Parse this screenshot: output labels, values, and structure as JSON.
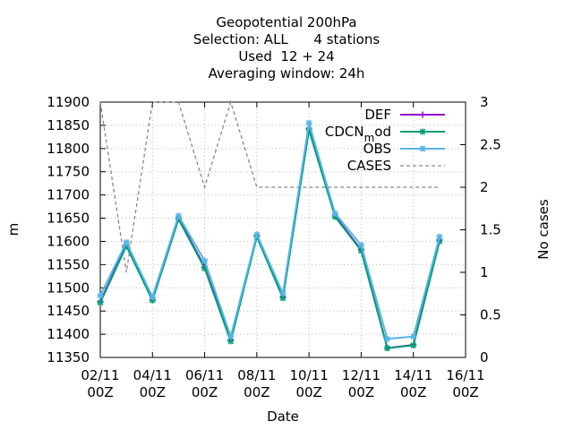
{
  "chart_data": {
    "type": "line",
    "title_lines": [
      "Geopotential 200hPa",
      "Selection: ALL      4 stations",
      "Used  12 + 24",
      "Averaging window: 24h"
    ],
    "xlabel": "Date",
    "ylabel": "m",
    "y2label": "No cases",
    "x_ticks": [
      {
        "day": 2,
        "line1": "02/11",
        "line2": "00Z"
      },
      {
        "day": 4,
        "line1": "04/11",
        "line2": "00Z"
      },
      {
        "day": 6,
        "line1": "06/11",
        "line2": "00Z"
      },
      {
        "day": 8,
        "line1": "08/11",
        "line2": "00Z"
      },
      {
        "day": 10,
        "line1": "10/11",
        "line2": "00Z"
      },
      {
        "day": 12,
        "line1": "12/11",
        "line2": "00Z"
      },
      {
        "day": 14,
        "line1": "14/11",
        "line2": "00Z"
      },
      {
        "day": 16,
        "line1": "16/11",
        "line2": "00Z"
      }
    ],
    "xlim": [
      2,
      16
    ],
    "ylim": [
      11350,
      11900
    ],
    "y_ticks": [
      11350,
      11400,
      11450,
      11500,
      11550,
      11600,
      11650,
      11700,
      11750,
      11800,
      11850,
      11900
    ],
    "y2lim": [
      0,
      3
    ],
    "y2_ticks": [
      "0",
      "0.5",
      "1",
      "1.5",
      "2",
      "2.5",
      "3"
    ],
    "x": [
      2,
      3,
      4,
      5,
      6,
      7,
      8,
      9,
      10,
      11,
      12,
      13,
      14,
      15
    ],
    "series": [
      {
        "name": "DEF",
        "color": "#9400d3",
        "axis": "y",
        "marker": "plus",
        "values": [
          11470,
          11593,
          11475,
          11650,
          11545,
          11387,
          11612,
          11480,
          11843,
          11655,
          11582,
          11370,
          11377,
          11603
        ]
      },
      {
        "name": "CDCN_mod",
        "color": "#009e73",
        "axis": "y",
        "marker": "star",
        "values": [
          11468,
          11590,
          11473,
          11648,
          11542,
          11385,
          11610,
          11478,
          11840,
          11653,
          11580,
          11370,
          11376,
          11600
        ]
      },
      {
        "name": "OBS",
        "color": "#56b4e9",
        "axis": "y",
        "marker": "star",
        "values": [
          11483,
          11598,
          11480,
          11655,
          11558,
          11395,
          11615,
          11488,
          11855,
          11660,
          11592,
          11390,
          11395,
          11610
        ]
      },
      {
        "name": "CASES",
        "color": "#888888",
        "axis": "y2",
        "dashed": true,
        "x": [
          2,
          2.5,
          3,
          3.5,
          4,
          4.5,
          5,
          5.5,
          6,
          6.5,
          7,
          7.5,
          8,
          8.5,
          9,
          9.5,
          10,
          10.5,
          11,
          11.5,
          12,
          12.5,
          13,
          13.5,
          14,
          14.5,
          15
        ],
        "values": [
          3,
          2,
          1,
          2,
          3,
          3,
          3,
          2.5,
          2,
          2.5,
          3,
          2.5,
          2,
          2,
          2,
          2,
          2,
          2,
          2,
          2,
          2,
          2,
          2,
          2,
          2,
          2,
          2
        ]
      }
    ],
    "legend": {
      "position": "top-right",
      "entries": [
        "DEF",
        "CDCN_mod",
        "OBS",
        "CASES"
      ]
    }
  }
}
